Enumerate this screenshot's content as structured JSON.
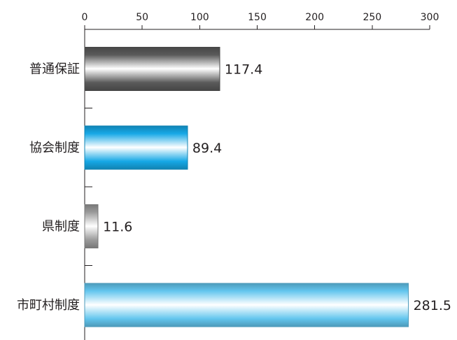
{
  "chart_data": {
    "type": "bar",
    "orientation": "horizontal",
    "categories": [
      "普通保証",
      "協会制度",
      "県制度",
      "市町村制度"
    ],
    "values": [
      117.4,
      89.4,
      11.6,
      281.5
    ],
    "value_labels": [
      "117.4",
      "89.4",
      "11.6",
      "281.5"
    ],
    "xlim": [
      0,
      300
    ],
    "x_ticks": [
      0,
      50,
      100,
      150,
      200,
      250,
      300
    ],
    "x_tick_labels": [
      "0",
      "50",
      "100",
      "150",
      "200",
      "250",
      "300"
    ],
    "x_axis_position": "top",
    "grid": false,
    "legend": "none",
    "bar_colors": [
      "#5a5a5a",
      "#16a8e6",
      "#9a9a9a",
      "#63c6ee"
    ],
    "bar_highlight": "#ffffff"
  }
}
